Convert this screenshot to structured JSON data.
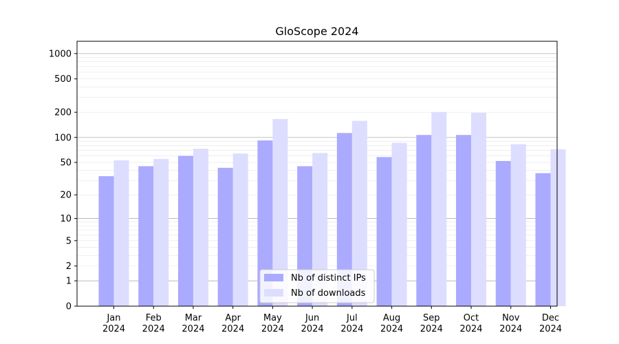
{
  "chart_data": {
    "type": "bar",
    "title": "GloScope 2024",
    "xlabel": "",
    "ylabel": "",
    "y_scale": "symlog",
    "ylim": [
      0,
      1400
    ],
    "y_ticks": [
      0,
      1,
      2,
      5,
      10,
      20,
      50,
      100,
      200,
      500,
      1000
    ],
    "y_tick_labels": [
      "0",
      "1",
      "2",
      "5",
      "10",
      "20",
      "50",
      "100",
      "200",
      "500",
      "1000"
    ],
    "categories": [
      "Jan\n2024",
      "Feb\n2024",
      "Mar\n2024",
      "Apr\n2024",
      "May\n2024",
      "Jun\n2024",
      "Jul\n2024",
      "Aug\n2024",
      "Sep\n2024",
      "Oct\n2024",
      "Nov\n2024",
      "Dec\n2024"
    ],
    "series": [
      {
        "name": "Nb of distinct IPs",
        "color": "#aaaaff",
        "values": [
          34,
          45,
          60,
          43,
          92,
          45,
          113,
          58,
          107,
          107,
          52,
          37
        ]
      },
      {
        "name": "Nb of downloads",
        "color": "#ddddff",
        "values": [
          53,
          55,
          73,
          64,
          166,
          65,
          158,
          86,
          201,
          197,
          83,
          72
        ]
      }
    ],
    "grid": true,
    "legend": "bottom-center"
  }
}
